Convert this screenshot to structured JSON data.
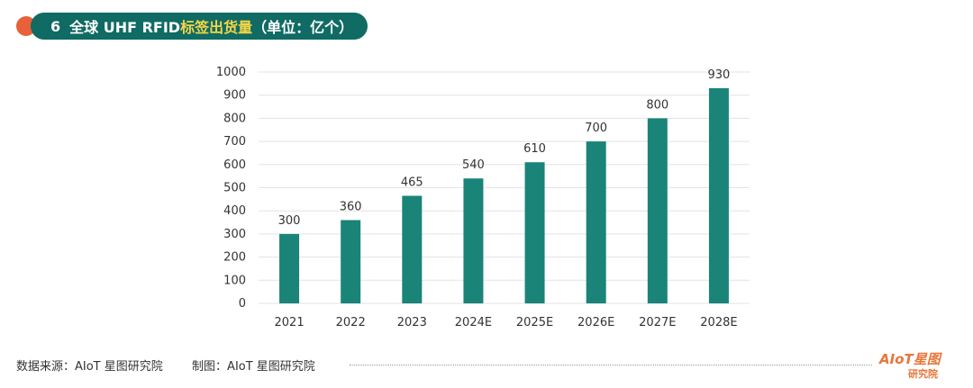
{
  "title": {
    "number": "6",
    "part1": "全球 UHF RFID ",
    "highlight": "标签出货量",
    "part2": "（单位：亿个）"
  },
  "footer": {
    "source": "数据来源：AIoT 星图研究院",
    "maker": "制图：AIoT 星图研究院"
  },
  "logo": {
    "brand": "AIoT星图",
    "sub": "研究院"
  },
  "chart_data": {
    "type": "bar",
    "categories": [
      "2021",
      "2022",
      "2023",
      "2024E",
      "2025E",
      "2026E",
      "2027E",
      "2028E"
    ],
    "values": [
      300,
      360,
      465,
      540,
      610,
      700,
      800,
      930
    ],
    "ylim": [
      0,
      1000
    ],
    "yticks": [
      0,
      100,
      200,
      300,
      400,
      500,
      600,
      700,
      800,
      900,
      1000
    ],
    "grid": true,
    "bar_color": "#1a8478",
    "data_labels": true
  },
  "colors": {
    "title_bg": "#0f6b63",
    "title_highlight": "#f5d547",
    "accent_dot": "#e8613a",
    "bar": "#1a8478"
  }
}
